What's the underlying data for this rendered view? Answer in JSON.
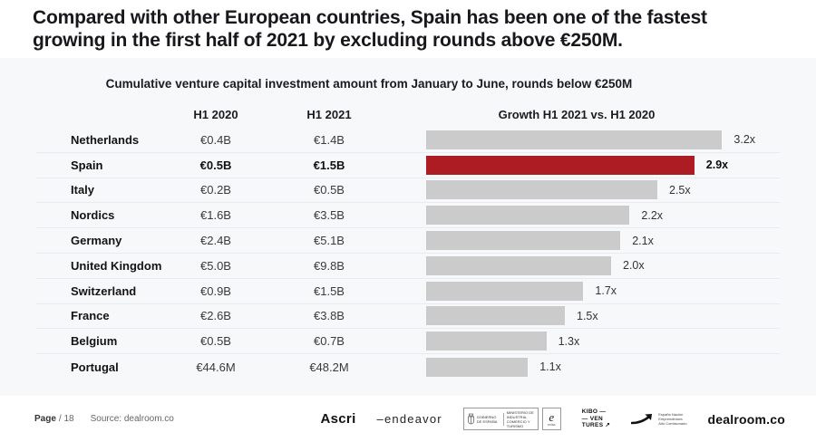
{
  "title": {
    "line1": "Compared with other European countries, Spain has been one of the fastest",
    "line2": "growing in the first half of 2021 by excluding rounds above €250M."
  },
  "chart_data": {
    "type": "bar",
    "orientation": "horizontal",
    "title": "Cumulative venture capital investment amount from January to June, rounds below €250M",
    "categories": [
      "Netherlands",
      "Spain",
      "Italy",
      "Nordics",
      "Germany",
      "United Kingdom",
      "Switzerland",
      "France",
      "Belgium",
      "Portugal"
    ],
    "series": [
      {
        "name": "H1 2020",
        "values": [
          "€0.4B",
          "€0.5B",
          "€0.2B",
          "€1.6B",
          "€2.4B",
          "€5.0B",
          "€0.9B",
          "€2.6B",
          "€0.5B",
          "€44.6M"
        ]
      },
      {
        "name": "H1 2021",
        "values": [
          "€1.4B",
          "€1.5B",
          "€0.5B",
          "€3.5B",
          "€5.1B",
          "€9.8B",
          "€1.5B",
          "€3.8B",
          "€0.7B",
          "€48.2M"
        ]
      },
      {
        "name": "Growth H1 2021 vs. H1 2020",
        "values": [
          3.2,
          2.9,
          2.5,
          2.2,
          2.1,
          2.0,
          1.7,
          1.5,
          1.3,
          1.1
        ]
      }
    ],
    "growth_labels": [
      "3.2x",
      "2.9x",
      "2.5x",
      "2.2x",
      "2.1x",
      "2.0x",
      "1.7x",
      "1.5x",
      "1.3x",
      "1.1x"
    ],
    "highlight_index": 1,
    "highlight_category": "Spain",
    "xlim": [
      0,
      3.85
    ],
    "grid": false,
    "legend": false
  },
  "colors": {
    "highlight_red": "#ae1c23",
    "bar_gray": "#cbcbcb",
    "panel_bg": "#f7f8fa"
  },
  "footer": {
    "page_label": "Page",
    "page_number": "/ 18",
    "source": "Source: dealroom.co",
    "logos": {
      "ascri": "Ascri",
      "endeavor": "–endeavor",
      "gobierno_line1": "GOBIERNO DE ESPAÑA",
      "gobierno_line2": "MINISTERIO DE INDUSTRIA, COMERCIO Y TURISMO",
      "enisa_e": "e",
      "enisa_sub": "enisa",
      "kibo_lines": "KIBO —\n— VEN\nTURES ↗",
      "espana_line1": "España Nación",
      "espana_line2": "Emprendedora",
      "espana_line3": "Alto Comisionado",
      "dealroom": "dealroom.co"
    }
  }
}
